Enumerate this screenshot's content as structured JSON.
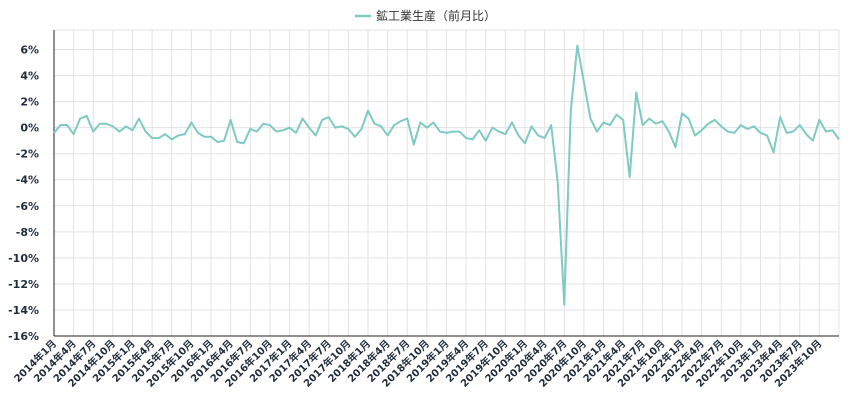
{
  "chart_data": {
    "type": "line",
    "legend_position": "top-center",
    "grid": true,
    "series": [
      {
        "name": "鉱工業生産（前月比）",
        "color": "#7fcac3",
        "values": [
          -0.4,
          0.2,
          0.2,
          -0.5,
          0.7,
          0.9,
          -0.3,
          0.3,
          0.3,
          0.1,
          -0.3,
          0.1,
          -0.2,
          0.7,
          -0.3,
          -0.8,
          -0.8,
          -0.5,
          -0.9,
          -0.6,
          -0.5,
          0.4,
          -0.4,
          -0.7,
          -0.7,
          -1.1,
          -1.0,
          0.6,
          -1.1,
          -1.2,
          -0.1,
          -0.3,
          0.3,
          0.2,
          -0.3,
          -0.2,
          0.0,
          -0.4,
          0.7,
          0.0,
          -0.6,
          0.6,
          0.8,
          0.0,
          0.1,
          -0.1,
          -0.7,
          -0.1,
          1.3,
          0.3,
          0.1,
          -0.6,
          0.2,
          0.5,
          0.7,
          -1.3,
          0.4,
          0.0,
          0.4,
          -0.3,
          -0.4,
          -0.3,
          -0.3,
          -0.8,
          -0.9,
          -0.2,
          -1.0,
          0.0,
          -0.3,
          -0.5,
          0.4,
          -0.6,
          -1.2,
          0.1,
          -0.6,
          -0.8,
          0.2,
          -4.2,
          -13.6,
          1.3,
          6.3,
          3.5,
          0.7,
          -0.3,
          0.4,
          0.2,
          1.0,
          0.6,
          -3.8,
          2.7,
          0.2,
          0.7,
          0.3,
          0.5,
          -0.3,
          -1.5,
          1.1,
          0.7,
          -0.6,
          -0.2,
          0.3,
          0.6,
          0.1,
          -0.3,
          -0.4,
          0.2,
          -0.1,
          0.1,
          -0.4,
          -0.6,
          -1.9,
          0.8,
          -0.4,
          -0.3,
          0.2,
          -0.5,
          -1.0,
          0.6,
          -0.3,
          -0.2,
          -0.9
        ]
      }
    ],
    "x": [
      "2014年1月",
      "2014年2月",
      "2014年3月",
      "2014年4月",
      "2014年5月",
      "2014年6月",
      "2014年7月",
      "2014年8月",
      "2014年9月",
      "2014年10月",
      "2014年11月",
      "2014年12月",
      "2015年1月",
      "2015年2月",
      "2015年3月",
      "2015年4月",
      "2015年5月",
      "2015年6月",
      "2015年7月",
      "2015年8月",
      "2015年9月",
      "2015年10月",
      "2015年11月",
      "2015年12月",
      "2016年1月",
      "2016年2月",
      "2016年3月",
      "2016年4月",
      "2016年5月",
      "2016年6月",
      "2016年7月",
      "2016年8月",
      "2016年9月",
      "2016年10月",
      "2016年11月",
      "2016年12月",
      "2017年1月",
      "2017年2月",
      "2017年3月",
      "2017年4月",
      "2017年5月",
      "2017年6月",
      "2017年7月",
      "2017年8月",
      "2017年9月",
      "2017年10月",
      "2017年11月",
      "2017年12月",
      "2018年1月",
      "2018年2月",
      "2018年3月",
      "2018年4月",
      "2018年5月",
      "2018年6月",
      "2018年7月",
      "2018年8月",
      "2018年9月",
      "2018年10月",
      "2018年11月",
      "2018年12月",
      "2019年1月",
      "2019年2月",
      "2019年3月",
      "2019年4月",
      "2019年5月",
      "2019年6月",
      "2019年7月",
      "2019年8月",
      "2019年9月",
      "2019年10月",
      "2019年11月",
      "2019年12月",
      "2020年1月",
      "2020年2月",
      "2020年3月",
      "2020年4月",
      "2020年5月",
      "2020年6月",
      "2020年7月",
      "2020年8月",
      "2020年9月",
      "2020年10月",
      "2020年11月",
      "2020年12月",
      "2021年1月",
      "2021年2月",
      "2021年3月",
      "2021年4月",
      "2021年5月",
      "2021年6月",
      "2021年7月",
      "2021年8月",
      "2021年9月",
      "2021年10月",
      "2021年11月",
      "2021年12月",
      "2022年1月",
      "2022年2月",
      "2022年3月",
      "2022年4月",
      "2022年5月",
      "2022年6月",
      "2022年7月",
      "2022年8月",
      "2022年9月",
      "2022年10月",
      "2022年11月",
      "2022年12月",
      "2023年1月",
      "2023年2月",
      "2023年3月",
      "2023年4月",
      "2023年5月",
      "2023年6月",
      "2023年7月",
      "2023年8月",
      "2023年9月",
      "2023年10月",
      "2023年11月",
      "2023年12月",
      "2024年1月"
    ],
    "x_tick_labels": [
      "2014年1月",
      "2014年4月",
      "2014年7月",
      "2014年10月",
      "2015年1月",
      "2015年4月",
      "2015年7月",
      "2015年10月",
      "2016年1月",
      "2016年4月",
      "2016年7月",
      "2016年10月",
      "2017年1月",
      "2017年4月",
      "2017年7月",
      "2017年10月",
      "2018年1月",
      "2018年4月",
      "2018年7月",
      "2018年10月",
      "2019年1月",
      "2019年4月",
      "2019年7月",
      "2019年10月",
      "2020年1月",
      "2020年4月",
      "2020年7月",
      "2020年10月",
      "2021年1月",
      "2021年4月",
      "2021年7月",
      "2021年10月",
      "2022年1月",
      "2022年4月",
      "2022年7月",
      "2022年10月",
      "2023年1月",
      "2023年4月",
      "2023年7月",
      "2023年10月"
    ],
    "y_ticks": [
      6,
      4,
      2,
      0,
      -2,
      -4,
      -6,
      -8,
      -10,
      -12,
      -14,
      -16
    ],
    "y_tick_labels": [
      "6%",
      "4%",
      "2%",
      "0%",
      "-2%",
      "-4%",
      "-6%",
      "-8%",
      "-10%",
      "-12%",
      "-14%",
      "-16%"
    ],
    "ylim": [
      -16,
      7.5
    ]
  }
}
